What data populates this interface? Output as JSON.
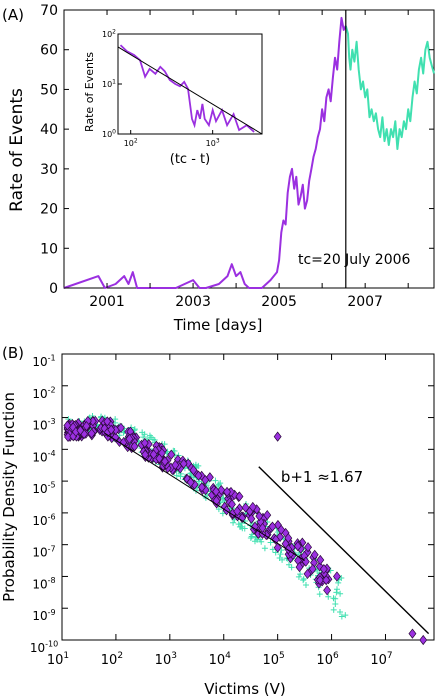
{
  "chart_data": [
    {
      "panel": "(A)",
      "type": "line",
      "xlabel": "Time [days]",
      "ylabel": "Rate of Events",
      "xlim": [
        2000.0,
        2008.6
      ],
      "ylim": [
        0,
        70
      ],
      "xticks": [
        "2001",
        "2003",
        "2005",
        "2007"
      ],
      "xtick_values": [
        2001,
        2003,
        2005,
        2007
      ],
      "yticks": [
        "0",
        "10",
        "20",
        "30",
        "40",
        "50",
        "60",
        "70"
      ],
      "ytick_values": [
        0,
        10,
        20,
        30,
        40,
        50,
        60,
        70
      ],
      "annotation": "tc=20 July 2006",
      "tc": 2006.55,
      "series": [
        {
          "color": "#9b30e0",
          "points": [
            [
              2000.0,
              0
            ],
            [
              2000.8,
              3
            ],
            [
              2000.95,
              0
            ],
            [
              2001.2,
              1
            ],
            [
              2001.4,
              3
            ],
            [
              2001.5,
              1
            ],
            [
              2001.6,
              4
            ],
            [
              2001.7,
              0
            ],
            [
              2001.9,
              0
            ],
            [
              2002.2,
              0
            ],
            [
              2002.6,
              0
            ],
            [
              2003.0,
              2
            ],
            [
              2003.15,
              0
            ],
            [
              2003.3,
              0
            ],
            [
              2003.6,
              1
            ],
            [
              2003.8,
              3
            ],
            [
              2003.9,
              6
            ],
            [
              2004.0,
              3
            ],
            [
              2004.1,
              4
            ],
            [
              2004.2,
              1
            ],
            [
              2004.3,
              0
            ],
            [
              2004.6,
              0
            ],
            [
              2004.8,
              2
            ],
            [
              2004.95,
              4
            ],
            [
              2005.0,
              7
            ],
            [
              2005.05,
              14
            ],
            [
              2005.1,
              17
            ],
            [
              2005.15,
              16
            ],
            [
              2005.2,
              24
            ],
            [
              2005.25,
              28
            ],
            [
              2005.3,
              30
            ],
            [
              2005.35,
              25
            ],
            [
              2005.4,
              28
            ],
            [
              2005.45,
              21
            ],
            [
              2005.5,
              23
            ],
            [
              2005.55,
              26
            ],
            [
              2005.6,
              20
            ],
            [
              2005.65,
              22
            ],
            [
              2005.7,
              27
            ],
            [
              2005.75,
              30
            ],
            [
              2005.8,
              33
            ],
            [
              2005.85,
              35
            ],
            [
              2005.9,
              38
            ],
            [
              2005.95,
              40
            ],
            [
              2006.0,
              45
            ],
            [
              2006.05,
              42
            ],
            [
              2006.1,
              48
            ],
            [
              2006.15,
              50
            ],
            [
              2006.2,
              47
            ],
            [
              2006.25,
              53
            ],
            [
              2006.3,
              58
            ],
            [
              2006.35,
              55
            ],
            [
              2006.4,
              62
            ],
            [
              2006.45,
              68
            ],
            [
              2006.5,
              65
            ],
            [
              2006.55,
              66
            ]
          ]
        },
        {
          "color": "#40e0b0",
          "points": [
            [
              2006.55,
              66
            ],
            [
              2006.6,
              64
            ],
            [
              2006.63,
              58
            ],
            [
              2006.66,
              55
            ],
            [
              2006.7,
              60
            ],
            [
              2006.75,
              57
            ],
            [
              2006.8,
              62
            ],
            [
              2006.85,
              55
            ],
            [
              2006.9,
              50
            ],
            [
              2006.95,
              52
            ],
            [
              2007.0,
              48
            ],
            [
              2007.05,
              50
            ],
            [
              2007.1,
              43
            ],
            [
              2007.15,
              45
            ],
            [
              2007.2,
              42
            ],
            [
              2007.25,
              44
            ],
            [
              2007.3,
              40
            ],
            [
              2007.35,
              38
            ],
            [
              2007.4,
              43
            ],
            [
              2007.45,
              37
            ],
            [
              2007.5,
              40
            ],
            [
              2007.55,
              36
            ],
            [
              2007.6,
              40
            ],
            [
              2007.65,
              38
            ],
            [
              2007.7,
              42
            ],
            [
              2007.75,
              35
            ],
            [
              2007.8,
              40
            ],
            [
              2007.85,
              38
            ],
            [
              2007.9,
              42
            ],
            [
              2007.95,
              40
            ],
            [
              2008.0,
              45
            ],
            [
              2008.05,
              42
            ],
            [
              2008.1,
              48
            ],
            [
              2008.15,
              52
            ],
            [
              2008.2,
              49
            ],
            [
              2008.25,
              55
            ],
            [
              2008.3,
              58
            ],
            [
              2008.35,
              54
            ],
            [
              2008.4,
              60
            ],
            [
              2008.45,
              62
            ],
            [
              2008.5,
              58
            ],
            [
              2008.55,
              56
            ],
            [
              2008.6,
              54
            ]
          ]
        }
      ],
      "inset": {
        "xlabel": "(tc - t)",
        "ylabel": "Rate of Events",
        "scale": "log-log",
        "xlim": [
          70,
          4000
        ],
        "ylim": [
          1,
          100
        ],
        "xticks": [
          "10^2",
          "10^3"
        ],
        "yticks": [
          "10^0",
          "10^1",
          "10^2"
        ],
        "fit_line": [
          [
            70,
            55
          ],
          [
            4000,
            1
          ]
        ],
        "series": [
          {
            "color": "#9b30e0",
            "points": [
              [
                75,
                60
              ],
              [
                90,
                45
              ],
              [
                110,
                38
              ],
              [
                130,
                30
              ],
              [
                150,
                14
              ],
              [
                170,
                20
              ],
              [
                200,
                16
              ],
              [
                230,
                22
              ],
              [
                260,
                18
              ],
              [
                300,
                12
              ],
              [
                350,
                10
              ],
              [
                400,
                9
              ],
              [
                450,
                11
              ],
              [
                500,
                8
              ],
              [
                560,
                2
              ],
              [
                600,
                1.5
              ],
              [
                650,
                3
              ],
              [
                700,
                2
              ],
              [
                750,
                4
              ],
              [
                800,
                2
              ],
              [
                900,
                1.5
              ],
              [
                1000,
                3
              ],
              [
                1100,
                1.8
              ],
              [
                1300,
                3
              ],
              [
                1500,
                1.5
              ],
              [
                1800,
                2.5
              ],
              [
                2100,
                1.2
              ],
              [
                2600,
                1.5
              ],
              [
                3200,
                1.1
              ]
            ]
          }
        ]
      }
    },
    {
      "panel": "(B)",
      "type": "scatter",
      "xlabel": "Victims (V)",
      "ylabel": "Probability Density Function",
      "scale": "log-log",
      "xlim_exp": [
        1,
        7.9
      ],
      "ylim_exp": [
        -10,
        -1
      ],
      "xticks": [
        "10^1",
        "10^2",
        "10^3",
        "10^4",
        "10^5",
        "10^6",
        "10^7"
      ],
      "yticks": [
        "10^-1",
        "10^-2",
        "10^-3",
        "10^-4",
        "10^-5",
        "10^-6",
        "10^-7",
        "10^-8",
        "10^-9",
        "10^-10"
      ],
      "annotation": "b+1 ≈1.67",
      "reference_slope": -1.67,
      "reference_line_exp": [
        [
          4.65,
          -4.55
        ],
        [
          7.8,
          -9.8
        ]
      ],
      "fit_line_exp": [
        [
          1.8,
          -3.5
        ],
        [
          5.5,
          -7.5
        ]
      ],
      "series": [
        {
          "marker": "diamond",
          "color": "#9b30e0",
          "trend_exp": [
            [
              1.1,
              -3.4
            ],
            [
              1.8,
              -3.3
            ],
            [
              2.5,
              -3.9
            ],
            [
              3.0,
              -4.4
            ],
            [
              3.5,
              -4.9
            ],
            [
              4.0,
              -5.5
            ],
            [
              4.5,
              -6.1
            ],
            [
              5.0,
              -6.7
            ],
            [
              5.5,
              -7.4
            ],
            [
              6.0,
              -8.1
            ]
          ],
          "outliers_exp": [
            [
              5.0,
              -3.6
            ],
            [
              7.5,
              -9.8
            ],
            [
              7.7,
              -10.0
            ],
            [
              6.1,
              -8.0
            ]
          ]
        },
        {
          "marker": "plus",
          "color": "#40e0b0",
          "trend_exp": [
            [
              1.1,
              -3.3
            ],
            [
              1.8,
              -3.2
            ],
            [
              2.5,
              -3.8
            ],
            [
              3.0,
              -4.3
            ],
            [
              3.5,
              -4.9
            ],
            [
              4.0,
              -5.6
            ],
            [
              4.5,
              -6.3
            ],
            [
              5.0,
              -6.9
            ],
            [
              5.5,
              -7.7
            ],
            [
              6.0,
              -8.4
            ],
            [
              6.3,
              -8.8
            ]
          ]
        }
      ]
    }
  ]
}
